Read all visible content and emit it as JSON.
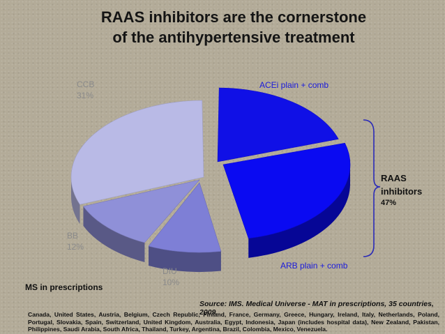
{
  "title": "RAAS inhibitors are the cornerstone\nof the antihypertensive treatment",
  "chart_data": {
    "type": "pie",
    "title": "RAAS inhibitors are the cornerstone of the antihypertensive treatment",
    "slices": [
      {
        "name": "ACEi plain + comb",
        "value": null,
        "pct_label": "",
        "color": "#1010e6"
      },
      {
        "name": "ARB plain + comb",
        "value": null,
        "pct_label": "",
        "color": "#0a0af2"
      },
      {
        "name": "DIU",
        "value": 10,
        "pct_label": "10%",
        "color": "#7e7fd6"
      },
      {
        "name": "BB",
        "value": 12,
        "pct_label": "12%",
        "color": "#8f90d8"
      },
      {
        "name": "CCB",
        "value": 31,
        "pct_label": "31%",
        "color": "#b9bae6"
      }
    ],
    "group": {
      "name": "RAAS\ninhibitors",
      "value": 47,
      "pct_label": "47%",
      "members": [
        "ACEi plain + comb",
        "ARB plain + comb"
      ]
    },
    "total_percent": 100
  },
  "labels": {
    "raas": "RAAS\ninhibitors",
    "raas_pct": "47%",
    "ms_in_prescriptions": "MS in prescriptions"
  },
  "footer": {
    "source": "Source: IMS. Medical Universe - MAT in prescriptions, 35 countries, 2009.",
    "countries": "Canada, United States, Austria, Belgium, Czech Republic, Finland, France, Germany, Greece, Hungary, Ireland, Italy, Netherlands, Poland, Portugal, Slovakia, Spain, Switzerland, United Kingdom, Australia, Egypt, Indonesia, Japan (includes hospital data), New Zealand, Pakistan, Philippines, Saudi Arabia, South Africa, Thailand, Turkey, Argentina, Brazil, Colombia, Mexico, Venezuela."
  },
  "colors": {
    "raas_blue": "#0000ff",
    "blue_label": "#1a1adc",
    "gray_label": "#8a8a8a"
  }
}
